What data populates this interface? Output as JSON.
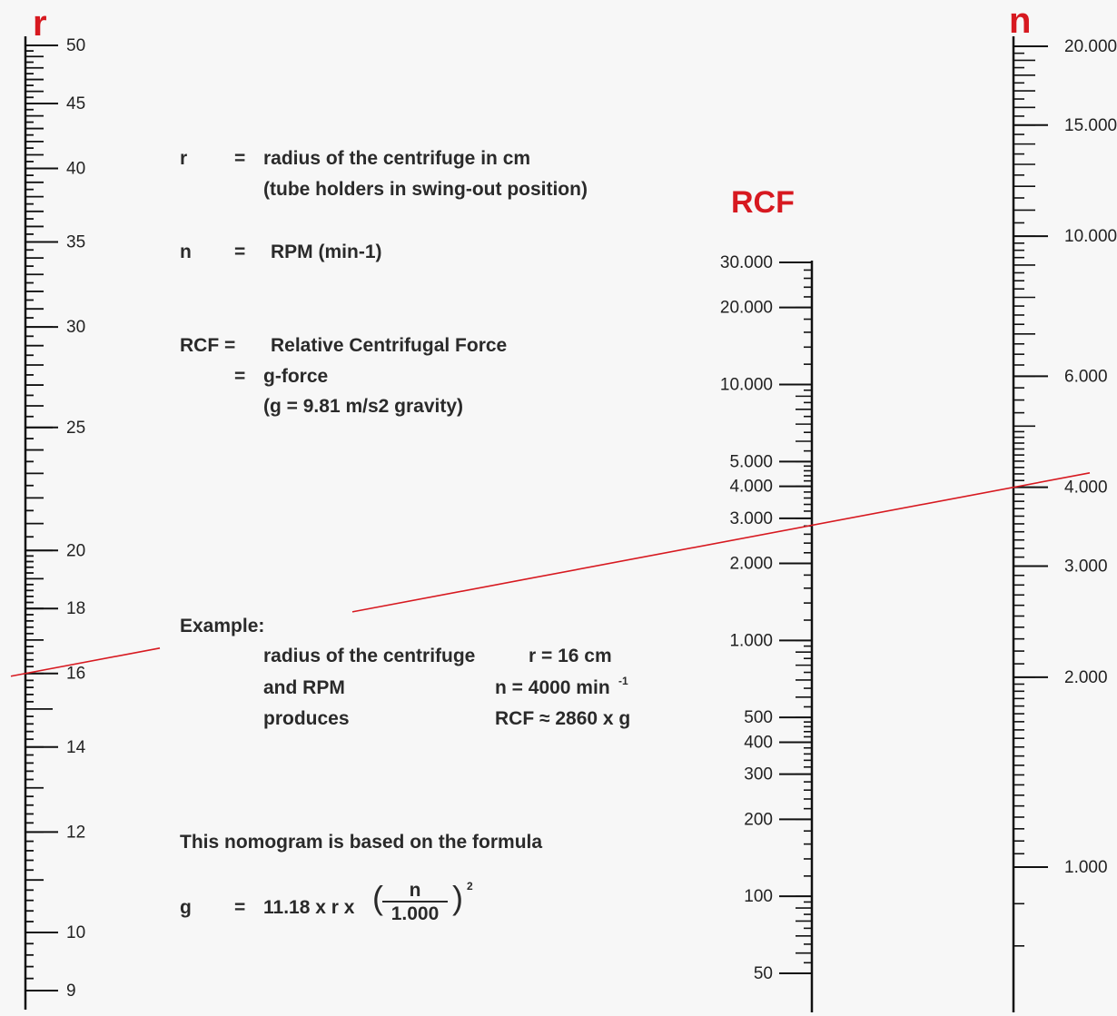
{
  "titles": {
    "r": "r",
    "rcf": "RCF",
    "n": "n"
  },
  "colors": {
    "accent": "#d71920",
    "ink": "#111111",
    "text": "#2a2a2a",
    "background": "#f7f7f7"
  },
  "r_scale": {
    "min": 9,
    "max": 50,
    "scale": "log",
    "major_labels": [
      "50",
      "45",
      "40",
      "35",
      "30",
      "25",
      "20",
      "18",
      "16",
      "14",
      "12",
      "10",
      "9"
    ]
  },
  "rcf_scale": {
    "min": 50,
    "max": 30000,
    "scale": "log",
    "major_labels": [
      "30.000",
      "20.000",
      "10.000",
      "5.000",
      "4.000",
      "3.000",
      "2.000",
      "1.000",
      "500",
      "400",
      "300",
      "200",
      "100",
      "50"
    ]
  },
  "n_scale": {
    "min": 1000,
    "max": 20000,
    "scale": "log",
    "major_labels": [
      "20.000",
      "15.000",
      "10.000",
      "6.000",
      "4.000",
      "3.000",
      "2.000",
      "1.000"
    ]
  },
  "legend": {
    "r_sym": "r",
    "r_eq": "=",
    "r_desc1": "radius of the centrifuge in cm",
    "r_desc2": "(tube holders in swing-out position)",
    "n_sym": "n",
    "n_eq": "=",
    "n_desc": "RPM (min-1)",
    "rcf_sym": "RCF =",
    "rcf_desc1": "Relative Centrifugal Force",
    "rcf_eq2": "=",
    "rcf_desc2": "g-force",
    "rcf_desc3": "(g = 9.81 m/s2 gravity)"
  },
  "example": {
    "heading": "Example:",
    "row1_label": "radius of the centrifuge",
    "row1_value": "r = 16 cm",
    "row2_label": "and RPM",
    "row2_value": "n = 4000 min",
    "row2_sup": "-1",
    "row3_label": "produces",
    "row3_value": "RCF ≈ 2860 x g",
    "r_value": 16,
    "n_value": 4000,
    "rcf_value": 2860
  },
  "formula": {
    "intro": "This nomogram is based on the formula",
    "lhs": "g",
    "eq": "=",
    "expr": "11.18 x r x",
    "numerator": "n",
    "denominator": "1.000",
    "exponent": "2"
  }
}
